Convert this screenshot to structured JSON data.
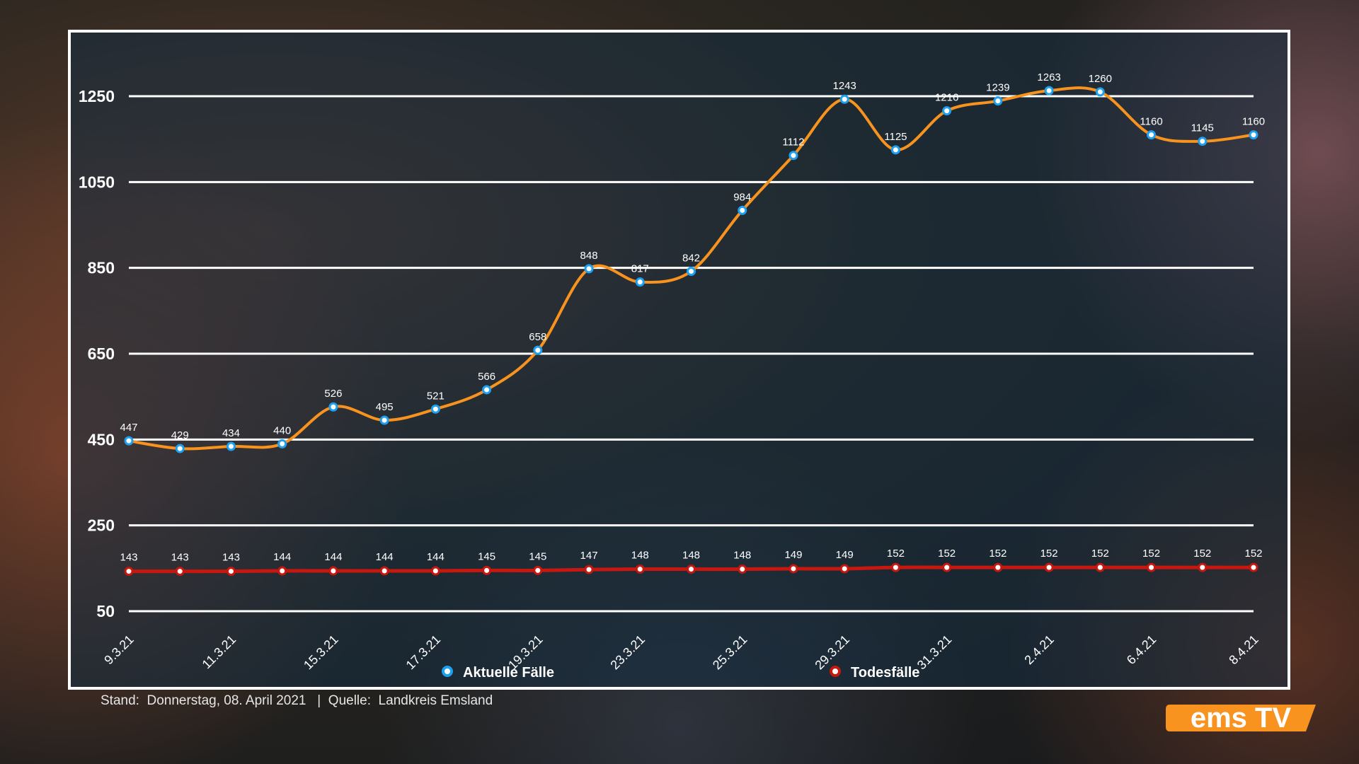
{
  "chart_data": {
    "type": "line",
    "x_labels": [
      "9.3.21",
      "",
      "11.3.21",
      "",
      "15.3.21",
      "",
      "17.3.21",
      "",
      "19.3.21",
      "",
      "23.3.21",
      "",
      "25.3.21",
      "",
      "29.3.21",
      "",
      "31.3.21",
      "",
      "2.4.21",
      "",
      "6.4.21",
      "",
      "8.4.21"
    ],
    "series": [
      {
        "name": "Aktuelle Fälle",
        "color": "#f7931e",
        "marker": "#1ea0f0",
        "values": [
          447,
          429,
          434,
          440,
          526,
          495,
          521,
          566,
          658,
          848,
          817,
          842,
          984,
          1112,
          1243,
          1125,
          1216,
          1239,
          1263,
          1260,
          1160,
          1145,
          1160
        ]
      },
      {
        "name": "Todesfälle",
        "color": "#c8170e",
        "marker": "#c8170e",
        "values": [
          143,
          143,
          143,
          144,
          144,
          144,
          144,
          145,
          145,
          147,
          148,
          148,
          148,
          149,
          149,
          152,
          152,
          152,
          152,
          152,
          152,
          152,
          152
        ]
      }
    ],
    "y_ticks": [
      50,
      250,
      450,
      650,
      850,
      1050,
      1250
    ],
    "ylim": [
      50,
      1250
    ],
    "grid": "horizontal",
    "legend": "bottom"
  },
  "footer": {
    "text": "Stand:  Donnerstag, 08. April 2021   |  Quelle:  Landkreis Emsland"
  },
  "logo": {
    "text": "ems TV",
    "color": "#f7931e"
  }
}
